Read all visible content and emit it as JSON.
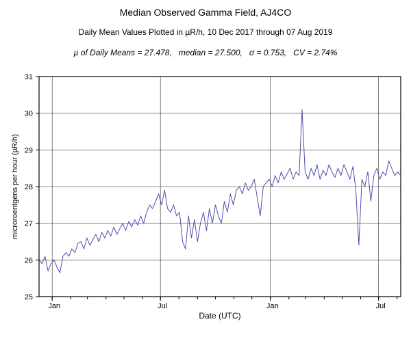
{
  "header": {
    "title": "Median Observed Gamma Field, AJ4CO",
    "subtitle": "Daily Mean Values Plotted in µR/h, 10 Dec 2017 through 07 Aug 2019",
    "stats": "µ of Daily Means = 27.478,   median = 27.500,   σ = 0.753,   CV = 2.74%"
  },
  "chart_data": {
    "type": "line",
    "title": "Median Observed Gamma Field, AJ4CO",
    "subtitle": "Daily Mean Values Plotted in µR/h, 10 Dec 2017 through 07 Aug 2019",
    "stats": {
      "mean": 27.478,
      "median": 27.5,
      "sigma": 0.753,
      "cv_percent": 2.74
    },
    "xlabel": "Date (UTC)",
    "ylabel": "microroentgens per hour (µR/h)",
    "start_date": "2017-12-10",
    "end_date": "2019-08-07",
    "ylim": [
      25,
      31
    ],
    "y_ticks": [
      25,
      26,
      27,
      28,
      29,
      30,
      31
    ],
    "x_total_days": 605,
    "x_ticks": [
      {
        "day": 22,
        "label": "Jan"
      },
      {
        "day": 203,
        "label": "Jul"
      },
      {
        "day": 387,
        "label": "Jan"
      },
      {
        "day": 568,
        "label": "Jul"
      }
    ],
    "x_minor_tick_days": [
      22,
      53,
      81,
      112,
      142,
      173,
      203,
      234,
      265,
      295,
      326,
      356,
      387,
      418,
      446,
      477,
      507,
      538,
      568,
      599
    ],
    "grid": true,
    "line_color": "#4d4dae",
    "axis_color": "#000000",
    "background": "#ffffff",
    "sample_interval_days": 5,
    "values": [
      26.0,
      25.9,
      26.1,
      25.7,
      25.9,
      26.0,
      25.8,
      25.65,
      26.1,
      26.2,
      26.1,
      26.3,
      26.2,
      26.45,
      26.5,
      26.3,
      26.6,
      26.4,
      26.55,
      26.7,
      26.5,
      26.75,
      26.6,
      26.8,
      26.65,
      26.9,
      26.7,
      26.85,
      27.0,
      26.8,
      27.05,
      26.9,
      27.1,
      26.95,
      27.2,
      27.0,
      27.3,
      27.5,
      27.4,
      27.6,
      27.8,
      27.5,
      27.9,
      27.4,
      27.3,
      27.5,
      27.2,
      27.3,
      26.5,
      26.3,
      27.2,
      26.6,
      27.1,
      26.5,
      27.0,
      27.3,
      26.8,
      27.4,
      27.0,
      27.5,
      27.2,
      27.0,
      27.6,
      27.3,
      27.8,
      27.5,
      27.9,
      28.0,
      27.8,
      28.1,
      27.9,
      28.0,
      28.2,
      27.7,
      27.2,
      28.0,
      28.1,
      28.2,
      28.0,
      28.3,
      28.1,
      28.4,
      28.2,
      28.35,
      28.5,
      28.2,
      28.4,
      28.3,
      30.1,
      28.4,
      28.2,
      28.5,
      28.3,
      28.6,
      28.2,
      28.45,
      28.3,
      28.6,
      28.4,
      28.25,
      28.5,
      28.3,
      28.6,
      28.4,
      28.2,
      28.55,
      27.9,
      26.4,
      28.2,
      28.0,
      28.4,
      27.6,
      28.3,
      28.5,
      28.2,
      28.4,
      28.3,
      28.7,
      28.5,
      28.3,
      28.4,
      28.3
    ]
  }
}
